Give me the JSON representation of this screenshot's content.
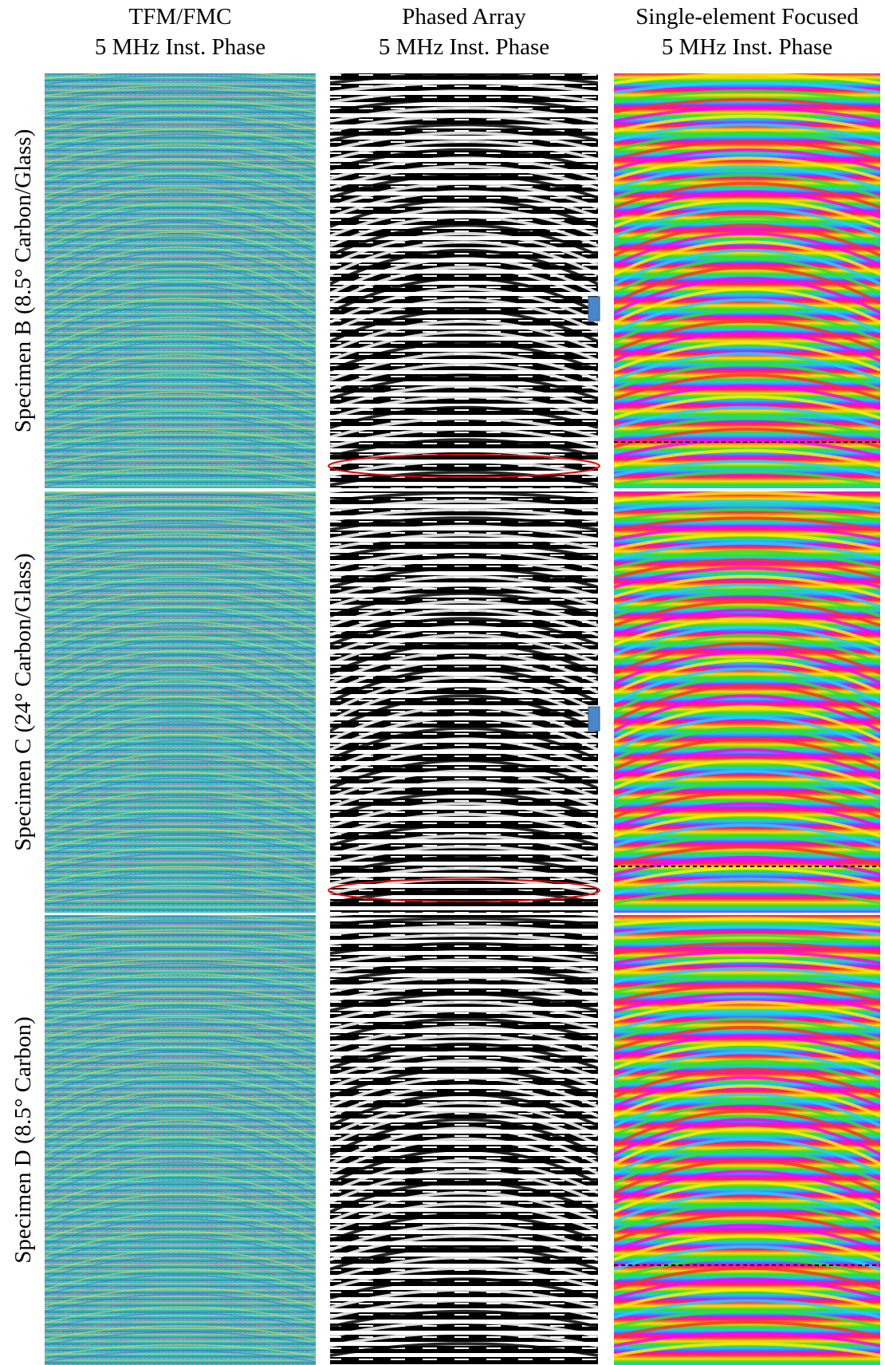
{
  "columns": [
    {
      "title": "TFM/FMC",
      "subtitle": "5 MHz Inst. Phase"
    },
    {
      "title": "Phased Array",
      "subtitle": "5 MHz Inst. Phase"
    },
    {
      "title": "Single-element Focused",
      "subtitle": "5 MHz Inst. Phase"
    }
  ],
  "rows": [
    {
      "label": "Specimen B (8.5° Carbon/Glass)"
    },
    {
      "label": "Specimen C (24° Carbon/Glass)"
    },
    {
      "label": "Specimen D (8.5° Carbon)"
    }
  ]
}
